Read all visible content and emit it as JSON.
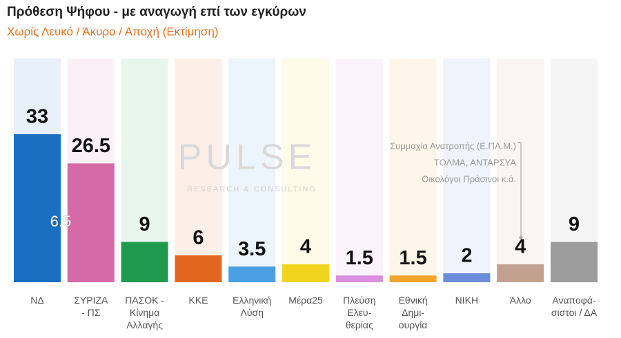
{
  "chart_data": {
    "type": "bar",
    "title": "Πρόθεση Ψήφου - με αναγωγή επί των εγκύρων",
    "subtitle": "Χωρίς Λευκό / Άκυρο / Αποχή  (Εκτίμηση)",
    "categories": [
      "ΝΔ",
      "ΣΥΡΙΖΑ\n- ΠΣ",
      "ΠΑΣΟΚ -\nΚίνημα\nΑλλαγής",
      "ΚΚΕ",
      "Ελληνική\nΛύση",
      "Μέρα25",
      "Πλεύση\nΕλευ-\nθερίας",
      "Εθνική\nΔημι-\nουργία",
      "ΝΙΚΗ",
      "Άλλο",
      "Αναποφά-\nσιστοι / ΔΑ"
    ],
    "values": [
      33,
      26.5,
      9,
      6,
      3.5,
      4,
      1.5,
      1.5,
      2,
      4,
      9
    ],
    "colors": [
      "#1b6fc2",
      "#d66aa8",
      "#1f9a4c",
      "#e2661e",
      "#4aa0e2",
      "#f1d41e",
      "#d98ee0",
      "#f0a52c",
      "#6b8cd8",
      "#c3a191",
      "#9c9c9c"
    ],
    "annotations": {
      "difference": "6.5",
      "others": [
        "Συμμαχία Ανατροπής (Ε.ΠΑ.Μ.)",
        "ΤΟΛΜΑ, ΑΝΤΑΡΣΥΑ",
        "Οικολόγοι Πράσινοι   κ.ά."
      ]
    },
    "watermark": {
      "name": "PULSE",
      "tagline": "RESEARCH & CONSULTING"
    }
  }
}
